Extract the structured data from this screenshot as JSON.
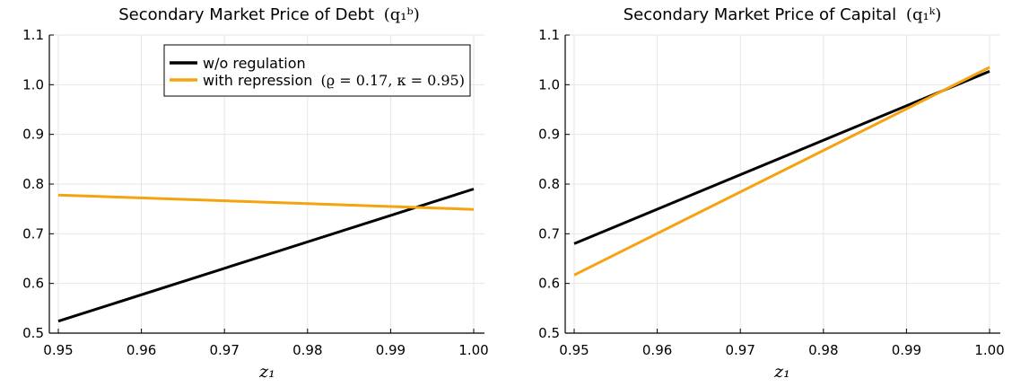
{
  "chart_data": [
    {
      "type": "line",
      "title": "Secondary Market Price of Debt",
      "title_math": "(q₁ᵇ)",
      "xlabel": "z₁",
      "ylabel": "",
      "xlim": [
        0.95,
        1.0
      ],
      "ylim": [
        0.5,
        1.1
      ],
      "xticks": [
        0.95,
        0.96,
        0.97,
        0.98,
        0.99,
        1.0
      ],
      "xtick_labels": [
        "0.95",
        "0.96",
        "0.97",
        "0.98",
        "0.99",
        "1.00"
      ],
      "yticks": [
        0.5,
        0.6,
        0.7,
        0.8,
        0.9,
        1.0,
        1.1
      ],
      "ytick_labels": [
        "0.5",
        "0.6",
        "0.7",
        "0.8",
        "0.9",
        "1.0",
        "1.1"
      ],
      "grid": true,
      "legend_position": "top-right",
      "series": [
        {
          "name": "w/o regulation",
          "legend_math": "",
          "color": "#000000",
          "x": [
            0.95,
            1.0
          ],
          "y": [
            0.524,
            0.79
          ]
        },
        {
          "name": "with repression",
          "legend_math": "(ϱ = 0.17, κ = 0.95)",
          "color": "#f5a30f",
          "x": [
            0.95,
            1.0
          ],
          "y": [
            0.778,
            0.749
          ]
        }
      ]
    },
    {
      "type": "line",
      "title": "Secondary Market Price of Capital",
      "title_math": "(q₁ᵏ)",
      "xlabel": "z₁",
      "ylabel": "",
      "xlim": [
        0.95,
        1.0
      ],
      "ylim": [
        0.5,
        1.1
      ],
      "xticks": [
        0.95,
        0.96,
        0.97,
        0.98,
        0.99,
        1.0
      ],
      "xtick_labels": [
        "0.95",
        "0.96",
        "0.97",
        "0.98",
        "0.99",
        "1.00"
      ],
      "yticks": [
        0.5,
        0.6,
        0.7,
        0.8,
        0.9,
        1.0,
        1.1
      ],
      "ytick_labels": [
        "0.5",
        "0.6",
        "0.7",
        "0.8",
        "0.9",
        "1.0",
        "1.1"
      ],
      "grid": true,
      "series": [
        {
          "name": "",
          "color": "#000000",
          "x": [
            0.95,
            1.0
          ],
          "y": [
            0.68,
            1.027
          ]
        },
        {
          "name": "",
          "color": "#f5a30f",
          "x": [
            0.95,
            1.0
          ],
          "y": [
            0.617,
            1.035
          ]
        }
      ]
    }
  ]
}
